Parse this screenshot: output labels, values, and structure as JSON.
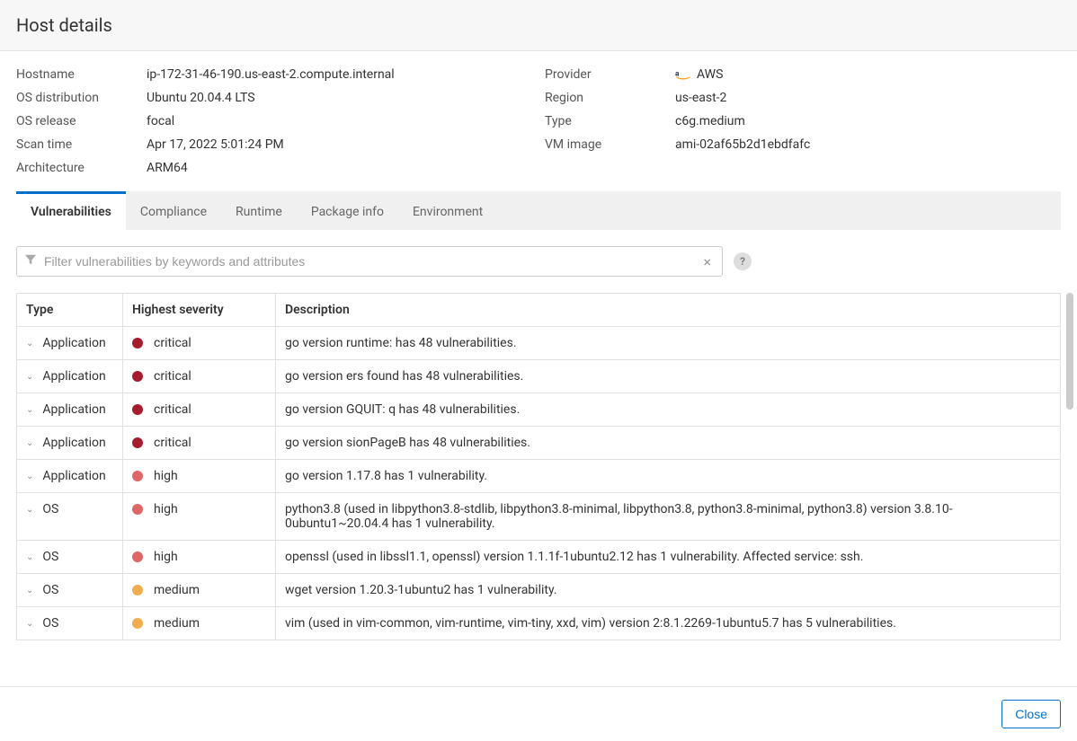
{
  "title": "Host details",
  "details_left": [
    {
      "label": "Hostname",
      "value": "ip-172-31-46-190.us-east-2.compute.internal"
    },
    {
      "label": "OS distribution",
      "value": "Ubuntu 20.04.4 LTS"
    },
    {
      "label": "OS release",
      "value": "focal"
    },
    {
      "label": "Scan time",
      "value": "Apr 17, 2022 5:01:24 PM"
    },
    {
      "label": "Architecture",
      "value": "ARM64"
    }
  ],
  "details_right": [
    {
      "label": "Provider",
      "value": "AWS",
      "icon": "aws"
    },
    {
      "label": "Region",
      "value": "us-east-2"
    },
    {
      "label": "Type",
      "value": "c6g.medium"
    },
    {
      "label": "VM image",
      "value": "ami-02af65b2d1ebdfafc"
    }
  ],
  "tabs": [
    {
      "label": "Vulnerabilities",
      "active": true
    },
    {
      "label": "Compliance",
      "active": false
    },
    {
      "label": "Runtime",
      "active": false
    },
    {
      "label": "Package info",
      "active": false
    },
    {
      "label": "Environment",
      "active": false
    }
  ],
  "filter_placeholder": "Filter vulnerabilities by keywords and attributes",
  "columns": {
    "type": "Type",
    "severity": "Highest severity",
    "description": "Description"
  },
  "severity_colors": {
    "critical": "#a51d2d",
    "high": "#e06666",
    "medium": "#f0ad4e"
  },
  "rows": [
    {
      "type": "Application",
      "severity": "critical",
      "description": "go version runtime: has 48 vulnerabilities."
    },
    {
      "type": "Application",
      "severity": "critical",
      "description": "go version ers found has 48 vulnerabilities."
    },
    {
      "type": "Application",
      "severity": "critical",
      "description": "go version GQUIT: q has 48 vulnerabilities."
    },
    {
      "type": "Application",
      "severity": "critical",
      "description": "go version sionPageB has 48 vulnerabilities."
    },
    {
      "type": "Application",
      "severity": "high",
      "description": "go version 1.17.8 has 1 vulnerability."
    },
    {
      "type": "OS",
      "severity": "high",
      "description": "python3.8 (used in libpython3.8-stdlib, libpython3.8-minimal, libpython3.8, python3.8-minimal, python3.8) version 3.8.10-0ubuntu1~20.04.4 has 1 vulnerability."
    },
    {
      "type": "OS",
      "severity": "high",
      "description": "openssl (used in libssl1.1, openssl) version 1.1.1f-1ubuntu2.12 has 1 vulnerability. Affected service: ssh."
    },
    {
      "type": "OS",
      "severity": "medium",
      "description": "wget version 1.20.3-1ubuntu2 has 1 vulnerability."
    },
    {
      "type": "OS",
      "severity": "medium",
      "description": "vim (used in vim-common, vim-runtime, vim-tiny, xxd, vim) version 2:8.1.2269-1ubuntu5.7 has 5 vulnerabilities."
    }
  ],
  "close_label": "Close"
}
